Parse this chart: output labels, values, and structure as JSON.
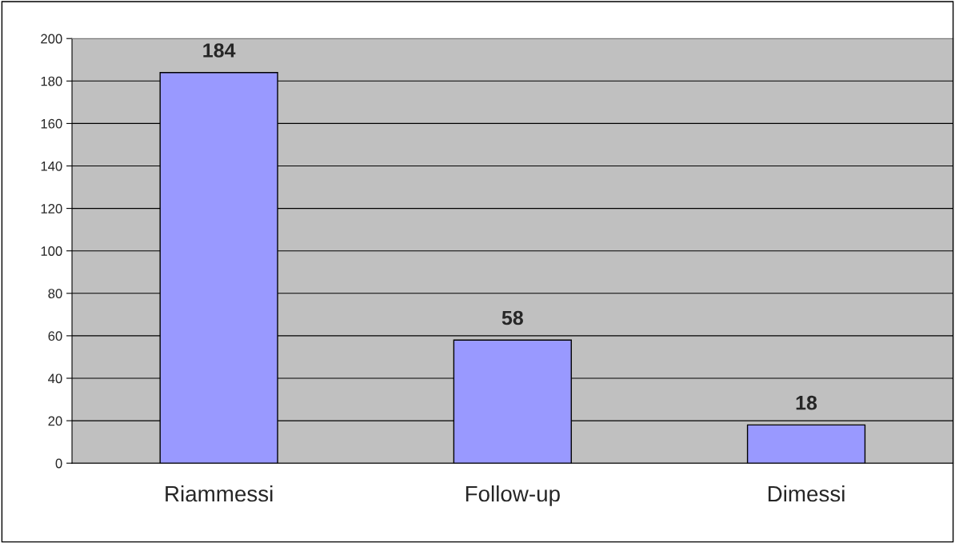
{
  "chart_data": {
    "type": "bar",
    "categories": [
      "Riammessi",
      "Follow-up",
      "Dimessi"
    ],
    "values": [
      184,
      58,
      18
    ],
    "color": "#9999ff",
    "ylim": [
      0,
      200
    ],
    "yticks": [
      0,
      20,
      40,
      60,
      80,
      100,
      120,
      140,
      160,
      180,
      200
    ],
    "grid": "y",
    "data_labels": true
  }
}
